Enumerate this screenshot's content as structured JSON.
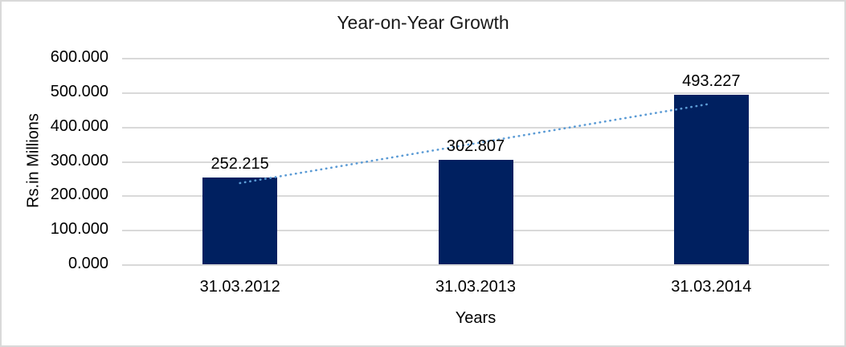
{
  "chart_data": {
    "type": "bar",
    "title": "Year-on-Year Growth",
    "categories": [
      "31.03.2012",
      "31.03.2013",
      "31.03.2014"
    ],
    "values": [
      252.215,
      302.807,
      493.227
    ],
    "data_labels": [
      "252.215",
      "302.807",
      "493.227"
    ],
    "xlabel": "Years",
    "ylabel": "Rs.in Millions",
    "ylim": [
      0,
      600
    ],
    "ytick_step": 100,
    "ytick_labels": [
      "600.000",
      "500.000",
      "400.000",
      "300.000",
      "200.000",
      "100.000",
      "0.000"
    ],
    "grid": "horizontal",
    "legend": "none",
    "colors": {
      "bar": "#002060",
      "trendline": "#5B9BD5",
      "gridline": "#D9D9D9",
      "frame_border": "#D9D9D9",
      "text": "#1a1a1a",
      "background": "#FFFFFF"
    },
    "trendline": {
      "type": "linear",
      "style": "dotted",
      "start_category_index": 0,
      "end_category_index": 2,
      "start_value": 236,
      "end_value": 467
    }
  }
}
